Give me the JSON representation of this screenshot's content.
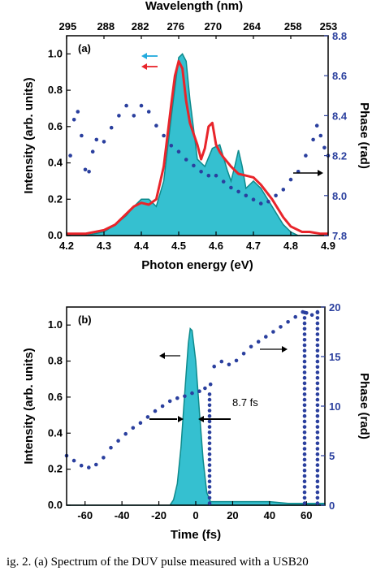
{
  "colors": {
    "fill": "#35c0d0",
    "fill_edge": "#0e8a8c",
    "measured": "#e8252b",
    "phase": "#2a3f9e",
    "arrow_blue": "#22aadd"
  },
  "chart_data": [
    {
      "type": "area",
      "panel_label": "(a)",
      "xlabel": "Photon energy (eV)",
      "ylabel": "Intensity (arb. units)",
      "y2label": "Phase (rad)",
      "top_xlabel": "Wavelength (nm)",
      "xlim": [
        4.2,
        4.9
      ],
      "ylim": [
        0,
        1.1
      ],
      "y2lim": [
        7.8,
        8.8
      ],
      "xticks": [
        "4.2",
        "4.3",
        "4.4",
        "4.5",
        "4.6",
        "4.7",
        "4.8",
        "4.9"
      ],
      "yticks": [
        "0.0",
        "0.2",
        "0.4",
        "0.6",
        "0.8",
        "1.0"
      ],
      "y2ticks": [
        "7.8",
        "8.0",
        "8.2",
        "8.4",
        "8.6",
        "8.8"
      ],
      "top_ticks": [
        {
          "label": "295",
          "energy": 4.203
        },
        {
          "label": "288",
          "energy": 4.305
        },
        {
          "label": "282",
          "energy": 4.397
        },
        {
          "label": "276",
          "energy": 4.492
        },
        {
          "label": "270",
          "energy": 4.592
        },
        {
          "label": "264",
          "energy": 4.696
        },
        {
          "label": "258",
          "energy": 4.806
        },
        {
          "label": "253",
          "energy": 4.901
        }
      ],
      "series": [
        {
          "role": "fill",
          "x": [
            4.2,
            4.25,
            4.3,
            4.33,
            4.36,
            4.38,
            4.4,
            4.42,
            4.44,
            4.46,
            4.48,
            4.5,
            4.51,
            4.52,
            4.53,
            4.55,
            4.57,
            4.59,
            4.61,
            4.63,
            4.64,
            4.65,
            4.66,
            4.67,
            4.68,
            4.7,
            4.72,
            4.75,
            4.78,
            4.8,
            4.82,
            4.85,
            4.9
          ],
          "y": [
            0,
            0,
            0.02,
            0.06,
            0.11,
            0.16,
            0.2,
            0.2,
            0.16,
            0.3,
            0.65,
            0.98,
            1.0,
            0.96,
            0.75,
            0.42,
            0.38,
            0.48,
            0.5,
            0.36,
            0.3,
            0.38,
            0.47,
            0.38,
            0.26,
            0.3,
            0.26,
            0.16,
            0.06,
            0.02,
            0,
            0,
            0
          ]
        },
        {
          "role": "measured",
          "x": [
            4.2,
            4.25,
            4.3,
            4.33,
            4.36,
            4.38,
            4.4,
            4.42,
            4.44,
            4.46,
            4.48,
            4.49,
            4.5,
            4.51,
            4.52,
            4.53,
            4.54,
            4.55,
            4.56,
            4.57,
            4.58,
            4.59,
            4.6,
            4.61,
            4.62,
            4.64,
            4.66,
            4.68,
            4.7,
            4.72,
            4.75,
            4.78,
            4.8,
            4.83,
            4.85,
            4.88,
            4.9
          ],
          "y": [
            0.01,
            0.01,
            0.03,
            0.06,
            0.12,
            0.16,
            0.18,
            0.17,
            0.2,
            0.38,
            0.72,
            0.88,
            0.96,
            0.92,
            0.74,
            0.62,
            0.56,
            0.5,
            0.42,
            0.48,
            0.6,
            0.62,
            0.5,
            0.46,
            0.43,
            0.38,
            0.34,
            0.33,
            0.32,
            0.28,
            0.2,
            0.1,
            0.05,
            0.02,
            0.02,
            0.01,
            0.01
          ]
        },
        {
          "role": "phase",
          "axis": "right",
          "x": [
            4.21,
            4.22,
            4.23,
            4.24,
            4.25,
            4.26,
            4.27,
            4.28,
            4.3,
            4.32,
            4.34,
            4.36,
            4.38,
            4.4,
            4.42,
            4.44,
            4.46,
            4.48,
            4.5,
            4.52,
            4.54,
            4.56,
            4.58,
            4.6,
            4.62,
            4.64,
            4.66,
            4.68,
            4.7,
            4.72,
            4.74,
            4.76,
            4.78,
            4.8,
            4.82,
            4.84,
            4.86,
            4.87,
            4.88,
            4.89,
            4.9
          ],
          "y": [
            8.2,
            8.38,
            8.42,
            8.3,
            8.13,
            8.12,
            8.22,
            8.28,
            8.27,
            8.34,
            8.4,
            8.45,
            8.4,
            8.45,
            8.42,
            8.35,
            8.3,
            8.25,
            8.22,
            8.18,
            8.15,
            8.12,
            8.1,
            8.1,
            8.07,
            8.04,
            8.02,
            8.0,
            7.98,
            7.96,
            7.97,
            8.0,
            8.03,
            8.08,
            8.12,
            8.2,
            8.28,
            8.35,
            8.3,
            8.24,
            8.2
          ]
        }
      ]
    },
    {
      "type": "area",
      "panel_label": "(b)",
      "xlabel": "Time (fs)",
      "ylabel": "Intensity (arb. units)",
      "y2label": "Phase (rad)",
      "xlim": [
        -70,
        70
      ],
      "ylim": [
        0,
        1.1
      ],
      "y2lim": [
        0,
        20
      ],
      "xticks": [
        "-60",
        "-40",
        "-20",
        "0",
        "20",
        "40",
        "60"
      ],
      "yticks": [
        "0.0",
        "0.2",
        "0.4",
        "0.6",
        "0.8",
        "1.0"
      ],
      "y2ticks": [
        "0",
        "5",
        "10",
        "15",
        "20"
      ],
      "annotation": "8.7 fs",
      "series": [
        {
          "role": "fill",
          "x": [
            -70,
            -20,
            -14,
            -12,
            -10,
            -8,
            -6,
            -4,
            -3,
            -2,
            0,
            2,
            4,
            6,
            8,
            10,
            20,
            30,
            40,
            50,
            60,
            70
          ],
          "y": [
            0,
            0,
            0,
            0.03,
            0.12,
            0.32,
            0.62,
            0.9,
            0.98,
            0.97,
            0.8,
            0.52,
            0.25,
            0.07,
            0.02,
            0.02,
            0.02,
            0.02,
            0.02,
            0.01,
            0.01,
            0.01
          ]
        },
        {
          "role": "phase",
          "axis": "right",
          "x": [
            -70,
            -66,
            -62,
            -58,
            -54,
            -50,
            -46,
            -42,
            -38,
            -34,
            -30,
            -26,
            -22,
            -18,
            -14,
            -10,
            -6,
            -2,
            2,
            5,
            8,
            10,
            14,
            18,
            22,
            26,
            30,
            34,
            38,
            42,
            46,
            50,
            54,
            58,
            60,
            63,
            66
          ],
          "y": [
            5.0,
            4.5,
            4.0,
            3.8,
            4.1,
            4.8,
            5.8,
            6.5,
            7.2,
            7.8,
            8.3,
            8.9,
            9.5,
            10.0,
            10.5,
            10.8,
            11.0,
            11.3,
            11.5,
            11.8,
            12.2,
            14.0,
            14.5,
            14.2,
            14.6,
            15.3,
            16.0,
            16.5,
            17.0,
            17.5,
            18.0,
            18.5,
            19.0,
            19.5,
            19.4,
            19.2,
            19.5
          ]
        }
      ]
    }
  ],
  "caption": "ig. 2. (a) Spectrum of the DUV pulse measured with a USB20"
}
